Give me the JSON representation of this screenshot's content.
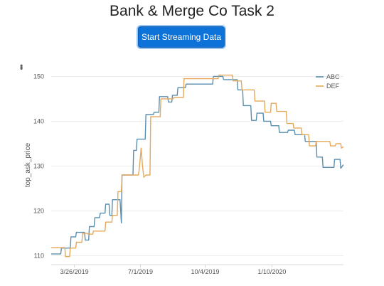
{
  "page": {
    "title": "Bank & Merge Co Task 2",
    "stream_button_label": "Start Streaming Data",
    "menu_icon": "vertical-dots-icon"
  },
  "chart_data": {
    "type": "line",
    "title": "",
    "xlabel": "",
    "ylabel": "top_ask_price",
    "xlim": [
      "2019-02-20",
      "2020-04-24"
    ],
    "ylim": [
      108,
      151.5
    ],
    "x_ticks": [
      "3/26/2019",
      "7/1/2019",
      "10/4/2019",
      "1/10/2020"
    ],
    "y_ticks": [
      110,
      120,
      130,
      140,
      150
    ],
    "grid": "horizontal",
    "legend": "top-right",
    "series": [
      {
        "name": "ABC",
        "color": "#5b8fb0",
        "points": [
          [
            "2019-02-20",
            110.4
          ],
          [
            "2019-03-06",
            110.4
          ],
          [
            "2019-03-07",
            111.7
          ],
          [
            "2019-03-20",
            111.7
          ],
          [
            "2019-03-21",
            114.2
          ],
          [
            "2019-03-28",
            114.2
          ],
          [
            "2019-03-29",
            115.2
          ],
          [
            "2019-04-10",
            115.2
          ],
          [
            "2019-04-11",
            113.5
          ],
          [
            "2019-04-16",
            113.5
          ],
          [
            "2019-04-17",
            116.5
          ],
          [
            "2019-04-24",
            116.5
          ],
          [
            "2019-04-25",
            118.5
          ],
          [
            "2019-05-02",
            118.5
          ],
          [
            "2019-05-03",
            119.5
          ],
          [
            "2019-05-10",
            119.5
          ],
          [
            "2019-05-11",
            121.5
          ],
          [
            "2019-05-16",
            121.5
          ],
          [
            "2019-05-17",
            119.0
          ],
          [
            "2019-05-20",
            119.0
          ],
          [
            "2019-05-21",
            122.5
          ],
          [
            "2019-06-01",
            122.5
          ],
          [
            "2019-06-03",
            117.3
          ],
          [
            "2019-06-04",
            128.0
          ],
          [
            "2019-06-20",
            128.0
          ],
          [
            "2019-06-21",
            133.5
          ],
          [
            "2019-06-25",
            133.5
          ],
          [
            "2019-06-26",
            136.0
          ],
          [
            "2019-07-08",
            136.0
          ],
          [
            "2019-07-09",
            141.5
          ],
          [
            "2019-07-20",
            141.5
          ],
          [
            "2019-07-21",
            142.0
          ],
          [
            "2019-07-28",
            142.0
          ],
          [
            "2019-07-29",
            145.5
          ],
          [
            "2019-08-10",
            145.5
          ],
          [
            "2019-08-11",
            144.3
          ],
          [
            "2019-08-16",
            144.3
          ],
          [
            "2019-08-17",
            145.8
          ],
          [
            "2019-08-24",
            145.8
          ],
          [
            "2019-08-25",
            147.5
          ],
          [
            "2019-09-05",
            147.5
          ],
          [
            "2019-09-06",
            148.3
          ],
          [
            "2019-10-15",
            148.3
          ],
          [
            "2019-10-16",
            150.0
          ],
          [
            "2019-10-30",
            150.0
          ],
          [
            "2019-10-31",
            149.3
          ],
          [
            "2019-11-20",
            149.3
          ],
          [
            "2019-11-21",
            147.0
          ],
          [
            "2019-11-28",
            147.0
          ],
          [
            "2019-11-29",
            143.5
          ],
          [
            "2019-12-10",
            143.5
          ],
          [
            "2019-12-11",
            140.2
          ],
          [
            "2019-12-18",
            140.2
          ],
          [
            "2019-12-19",
            141.8
          ],
          [
            "2019-12-28",
            141.8
          ],
          [
            "2019-12-29",
            140.0
          ],
          [
            "2020-01-08",
            140.0
          ],
          [
            "2020-01-09",
            139.0
          ],
          [
            "2020-01-20",
            139.0
          ],
          [
            "2020-01-21",
            137.5
          ],
          [
            "2020-02-02",
            137.5
          ],
          [
            "2020-02-03",
            138.0
          ],
          [
            "2020-02-12",
            138.0
          ],
          [
            "2020-02-13",
            137.0
          ],
          [
            "2020-02-27",
            137.0
          ],
          [
            "2020-02-28",
            135.5
          ],
          [
            "2020-03-15",
            135.5
          ],
          [
            "2020-03-16",
            132.0
          ],
          [
            "2020-03-24",
            132.0
          ],
          [
            "2020-03-25",
            129.7
          ],
          [
            "2020-04-10",
            129.7
          ],
          [
            "2020-04-11",
            131.5
          ],
          [
            "2020-04-19",
            131.5
          ],
          [
            "2020-04-20",
            129.5
          ],
          [
            "2020-04-24",
            130.3
          ]
        ]
      },
      {
        "name": "DEF",
        "color": "#e6a85a",
        "points": [
          [
            "2019-02-20",
            111.8
          ],
          [
            "2019-03-12",
            111.8
          ],
          [
            "2019-03-13",
            109.8
          ],
          [
            "2019-03-19",
            109.8
          ],
          [
            "2019-03-20",
            111.7
          ],
          [
            "2019-03-28",
            111.7
          ],
          [
            "2019-03-29",
            113.0
          ],
          [
            "2019-04-06",
            113.0
          ],
          [
            "2019-04-07",
            115.0
          ],
          [
            "2019-04-14",
            115.0
          ],
          [
            "2019-04-15",
            114.8
          ],
          [
            "2019-04-22",
            114.8
          ],
          [
            "2019-04-23",
            115.5
          ],
          [
            "2019-05-10",
            115.5
          ],
          [
            "2019-05-11",
            117.5
          ],
          [
            "2019-05-20",
            117.5
          ],
          [
            "2019-05-21",
            119.0
          ],
          [
            "2019-05-28",
            119.0
          ],
          [
            "2019-05-29",
            124.3
          ],
          [
            "2019-06-03",
            124.3
          ],
          [
            "2019-06-04",
            128.0
          ],
          [
            "2019-06-28",
            128.0
          ],
          [
            "2019-06-29",
            129.0
          ],
          [
            "2019-07-02",
            134.0
          ],
          [
            "2019-07-04",
            130.0
          ],
          [
            "2019-07-06",
            127.5
          ],
          [
            "2019-07-09",
            128.0
          ],
          [
            "2019-07-15",
            128.0
          ],
          [
            "2019-07-16",
            141.0
          ],
          [
            "2019-07-30",
            141.0
          ],
          [
            "2019-07-31",
            145.0
          ],
          [
            "2019-08-18",
            145.0
          ],
          [
            "2019-08-19",
            145.3
          ],
          [
            "2019-09-02",
            145.3
          ],
          [
            "2019-09-03",
            149.5
          ],
          [
            "2019-10-23",
            149.5
          ],
          [
            "2019-10-24",
            150.3
          ],
          [
            "2019-11-13",
            150.3
          ],
          [
            "2019-11-14",
            149.0
          ],
          [
            "2019-11-26",
            149.0
          ],
          [
            "2019-11-27",
            147.0
          ],
          [
            "2019-12-15",
            147.0
          ],
          [
            "2019-12-16",
            144.5
          ],
          [
            "2019-12-30",
            144.5
          ],
          [
            "2019-12-31",
            142.0
          ],
          [
            "2020-01-08",
            142.0
          ],
          [
            "2020-01-09",
            144.0
          ],
          [
            "2020-01-16",
            144.0
          ],
          [
            "2020-01-17",
            142.2
          ],
          [
            "2020-01-31",
            142.2
          ],
          [
            "2020-02-01",
            139.5
          ],
          [
            "2020-02-10",
            139.5
          ],
          [
            "2020-02-11",
            138.5
          ],
          [
            "2020-02-22",
            138.5
          ],
          [
            "2020-02-23",
            137.0
          ],
          [
            "2020-03-04",
            137.0
          ],
          [
            "2020-03-05",
            134.5
          ],
          [
            "2020-03-14",
            134.5
          ],
          [
            "2020-03-15",
            135.5
          ],
          [
            "2020-04-04",
            135.5
          ],
          [
            "2020-04-05",
            134.5
          ],
          [
            "2020-04-12",
            134.5
          ],
          [
            "2020-04-13",
            135.0
          ],
          [
            "2020-04-20",
            135.0
          ],
          [
            "2020-04-21",
            134.0
          ],
          [
            "2020-04-24",
            134.3
          ]
        ]
      }
    ]
  }
}
